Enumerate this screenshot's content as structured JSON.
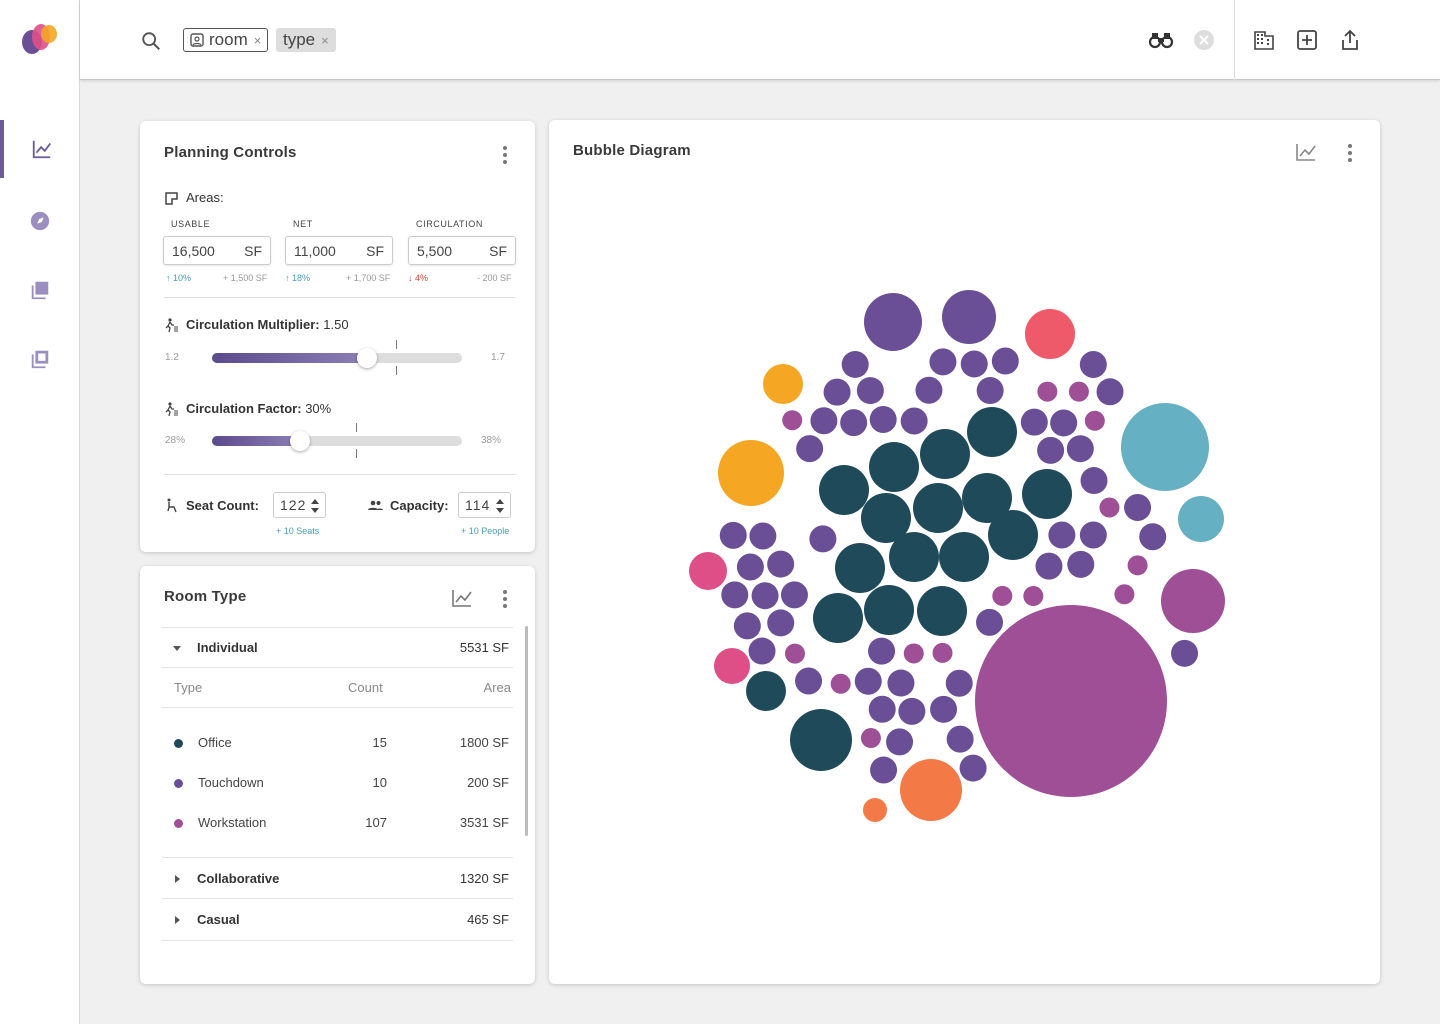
{
  "search": {
    "chips": [
      {
        "label": "room",
        "pinned": true
      },
      {
        "label": "type",
        "pinned": false
      }
    ],
    "chip_close": "×"
  },
  "toolbar": {
    "icons": [
      "binoculars-icon",
      "clear-icon",
      "building-icon",
      "add-box-icon",
      "share-icon"
    ]
  },
  "sidebar": {
    "items": [
      "chart-icon",
      "compass-icon",
      "layers-icon",
      "library-icon"
    ],
    "active": 0
  },
  "colors": {
    "accent": "#6b5b9a",
    "office": "#1f4a5a",
    "touchdown": "#6b4f96",
    "workstation": "#9e4f96",
    "coral": "#ee5a6a",
    "teal": "#66b0c3",
    "orange": "#f5a623",
    "pink": "#de4f88",
    "tangerine": "#f37a46"
  },
  "planning": {
    "title": "Planning Controls",
    "areas_label": "Areas:",
    "areas": [
      {
        "label": "USABLE",
        "value": "16,500",
        "unit": "SF",
        "pct": "10%",
        "dir": "up",
        "delta": "+ 1,500 SF"
      },
      {
        "label": "NET",
        "value": "11,000",
        "unit": "SF",
        "pct": "18%",
        "dir": "up",
        "delta": "+ 1,700 SF"
      },
      {
        "label": "CIRCULATION",
        "value": "5,500",
        "unit": "SF",
        "pct": "4%",
        "dir": "down",
        "delta": "- 200 SF"
      }
    ],
    "multiplier": {
      "label": "Circulation Multiplier:",
      "value": "1.50",
      "min": "1.2",
      "max": "1.7",
      "level": 0.62,
      "tick": 0.74
    },
    "factor": {
      "label": "Circulation Factor:",
      "value": "30%",
      "min": "28%",
      "max": "38%",
      "level": 0.35,
      "tick": 0.58
    },
    "seat": {
      "label": "Seat Count:",
      "value": "122",
      "hint": "+ 10 Seats"
    },
    "capacity": {
      "label": "Capacity:",
      "value": "114",
      "hint": "+ 10 People"
    }
  },
  "roomtype": {
    "title": "Room Type",
    "groups": [
      {
        "label": "Individual",
        "area": "5531 SF",
        "expanded": true
      },
      {
        "label": "Collaborative",
        "area": "1320 SF",
        "expanded": false
      },
      {
        "label": "Casual",
        "area": "465 SF",
        "expanded": false
      }
    ],
    "columns": [
      "Type",
      "Count",
      "Area"
    ],
    "rows": [
      {
        "type": "Office",
        "count": "15",
        "area": "1800 SF",
        "color": "#1f4a5a"
      },
      {
        "type": "Touchdown",
        "count": "10",
        "area": "200 SF",
        "color": "#6b4f96"
      },
      {
        "type": "Workstation",
        "count": "107",
        "area": "3531 SF",
        "color": "#9e4f96"
      }
    ]
  },
  "bubble": {
    "title": "Bubble Diagram"
  }
}
